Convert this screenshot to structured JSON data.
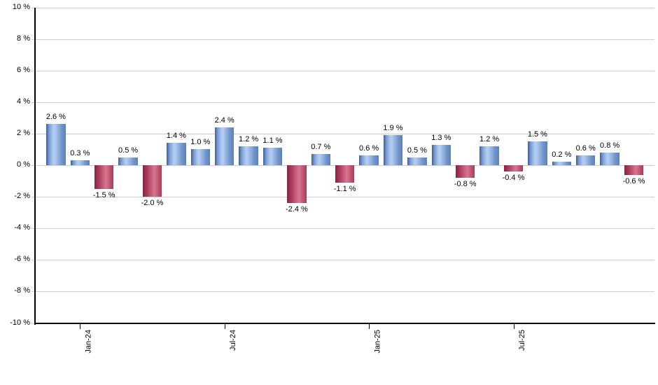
{
  "chart_data": {
    "type": "bar",
    "title": "",
    "xlabel": "",
    "ylabel": "",
    "ylim": [
      -10,
      10
    ],
    "y_tick_step": 2,
    "grid": true,
    "legend": "none",
    "y_tick_labels": [
      "10 %",
      "8 %",
      "6 %",
      "4 %",
      "2 %",
      "0 %",
      "-2 %",
      "-4 %",
      "-6 %",
      "-8 %",
      "-10 %"
    ],
    "x_ticks": [
      {
        "label": "Jan-24",
        "bar_index": 1
      },
      {
        "label": "Jul-24",
        "bar_index": 7
      },
      {
        "label": "Jan-25",
        "bar_index": 13
      },
      {
        "label": "Jul-25",
        "bar_index": 19
      }
    ],
    "values": [
      2.6,
      0.3,
      -1.5,
      0.5,
      -2.0,
      1.4,
      1.0,
      2.4,
      1.2,
      1.1,
      -2.4,
      0.7,
      -1.1,
      0.6,
      1.9,
      0.5,
      1.3,
      -0.8,
      1.2,
      -0.4,
      1.5,
      0.2,
      0.6,
      0.8,
      -0.6
    ],
    "value_label_suffix": " %",
    "colors": {
      "positive_bar": "#7b9cd2",
      "negative_bar": "#c25872",
      "gridline": "#cccccc",
      "axis": "#000000",
      "label_text": "#000000",
      "background": "#ffffff"
    }
  }
}
